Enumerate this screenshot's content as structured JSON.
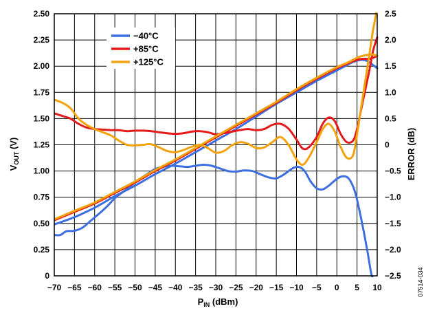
{
  "chart_data": {
    "type": "line",
    "xlabel": {
      "main": "P",
      "sub": "IN",
      "unit": " (dBm)"
    },
    "ylabel": {
      "main": "V",
      "sub": "OUT",
      "unit": " (V)"
    },
    "y2label": "ERROR (dB)",
    "figure_id": "07514-034",
    "xlim": [
      -70,
      10
    ],
    "ylim": [
      0,
      2.5
    ],
    "y2lim": [
      -2.5,
      2.5
    ],
    "grid": true,
    "legend_position": "top-left",
    "x_ticks": [
      "−70",
      "−65",
      "−60",
      "−55",
      "−50",
      "−45",
      "−40",
      "−35",
      "−30",
      "−25",
      "−20",
      "−15",
      "−10",
      "−5",
      "0",
      "5",
      "10"
    ],
    "y_ticks": [
      "0",
      "0.25",
      "0.50",
      "0.75",
      "1.00",
      "1.25",
      "1.50",
      "1.75",
      "2.00",
      "2.25",
      "2.50"
    ],
    "y2_ticks": [
      "−2.5",
      "−2.0",
      "−1.5",
      "−1.0",
      "−0.5",
      "0",
      "0.5",
      "1.0",
      "1.5",
      "2.0",
      "2.5"
    ],
    "series": [
      {
        "name": "−40°C",
        "color": "#3d6fe0",
        "vout": [
          [
            -70,
            0.49
          ],
          [
            -65,
            0.56
          ],
          [
            -60,
            0.65
          ],
          [
            -55,
            0.76
          ],
          [
            -50,
            0.86
          ],
          [
            -45,
            0.97
          ],
          [
            -40,
            1.07
          ],
          [
            -35,
            1.18
          ],
          [
            -30,
            1.29
          ],
          [
            -25,
            1.4
          ],
          [
            -20,
            1.52
          ],
          [
            -15,
            1.64
          ],
          [
            -10,
            1.75
          ],
          [
            -5,
            1.86
          ],
          [
            0,
            1.96
          ],
          [
            2,
            2.0
          ],
          [
            4,
            2.04
          ],
          [
            6,
            2.06
          ],
          [
            7.5,
            2.05
          ],
          [
            9,
            2.01
          ],
          [
            10,
            1.98
          ]
        ],
        "error": [
          [
            -70,
            -1.72
          ],
          [
            -68.5,
            -1.72
          ],
          [
            -67,
            -1.65
          ],
          [
            -65,
            -1.64
          ],
          [
            -63,
            -1.58
          ],
          [
            -61,
            -1.45
          ],
          [
            -59,
            -1.32
          ],
          [
            -57,
            -1.18
          ],
          [
            -55,
            -1.02
          ],
          [
            -53,
            -0.9
          ],
          [
            -51,
            -0.78
          ],
          [
            -49,
            -0.66
          ],
          [
            -47,
            -0.56
          ],
          [
            -45,
            -0.46
          ],
          [
            -43,
            -0.42
          ],
          [
            -41,
            -0.4
          ],
          [
            -39,
            -0.41
          ],
          [
            -37,
            -0.42
          ],
          [
            -35,
            -0.4
          ],
          [
            -33,
            -0.38
          ],
          [
            -31,
            -0.4
          ],
          [
            -29,
            -0.45
          ],
          [
            -27,
            -0.5
          ],
          [
            -25,
            -0.51
          ],
          [
            -23,
            -0.49
          ],
          [
            -21,
            -0.5
          ],
          [
            -19,
            -0.56
          ],
          [
            -17,
            -0.62
          ],
          [
            -15,
            -0.64
          ],
          [
            -13,
            -0.56
          ],
          [
            -11,
            -0.45
          ],
          [
            -9.5,
            -0.42
          ],
          [
            -8,
            -0.5
          ],
          [
            -6.5,
            -0.7
          ],
          [
            -5,
            -0.83
          ],
          [
            -3.5,
            -0.85
          ],
          [
            -2,
            -0.78
          ],
          [
            0,
            -0.65
          ],
          [
            1.5,
            -0.6
          ],
          [
            3,
            -0.65
          ],
          [
            4.5,
            -0.9
          ],
          [
            6,
            -1.4
          ],
          [
            7.5,
            -2.0
          ],
          [
            8.5,
            -2.45
          ],
          [
            9,
            -2.55
          ]
        ]
      },
      {
        "name": "+85°C",
        "color": "#e51a1a",
        "vout": [
          [
            -70,
            0.53
          ],
          [
            -65,
            0.61
          ],
          [
            -60,
            0.69
          ],
          [
            -55,
            0.79
          ],
          [
            -50,
            0.89
          ],
          [
            -45,
            1.0
          ],
          [
            -40,
            1.1
          ],
          [
            -35,
            1.21
          ],
          [
            -30,
            1.32
          ],
          [
            -25,
            1.43
          ],
          [
            -20,
            1.54
          ],
          [
            -15,
            1.65
          ],
          [
            -10,
            1.77
          ],
          [
            -5,
            1.88
          ],
          [
            0,
            1.98
          ],
          [
            3,
            2.03
          ],
          [
            5,
            2.06
          ],
          [
            6.5,
            2.07
          ],
          [
            8,
            2.07
          ],
          [
            9,
            2.08
          ],
          [
            10,
            2.1
          ]
        ],
        "error": [
          [
            -70,
            0.6
          ],
          [
            -68,
            0.55
          ],
          [
            -66,
            0.5
          ],
          [
            -64,
            0.4
          ],
          [
            -62,
            0.33
          ],
          [
            -60,
            0.3
          ],
          [
            -58,
            0.29
          ],
          [
            -56,
            0.28
          ],
          [
            -54,
            0.28
          ],
          [
            -52,
            0.26
          ],
          [
            -50,
            0.27
          ],
          [
            -48,
            0.27
          ],
          [
            -46,
            0.26
          ],
          [
            -44,
            0.24
          ],
          [
            -42,
            0.22
          ],
          [
            -40,
            0.21
          ],
          [
            -38,
            0.22
          ],
          [
            -36,
            0.25
          ],
          [
            -34,
            0.26
          ],
          [
            -32,
            0.24
          ],
          [
            -30,
            0.2
          ],
          [
            -28,
            0.22
          ],
          [
            -26,
            0.25
          ],
          [
            -24,
            0.28
          ],
          [
            -22,
            0.3
          ],
          [
            -20,
            0.28
          ],
          [
            -18,
            0.3
          ],
          [
            -16,
            0.38
          ],
          [
            -14,
            0.4
          ],
          [
            -12,
            0.31
          ],
          [
            -10,
            0.1
          ],
          [
            -8.5,
            -0.07
          ],
          [
            -7,
            -0.05
          ],
          [
            -5,
            0.15
          ],
          [
            -3.5,
            0.4
          ],
          [
            -2,
            0.52
          ],
          [
            -0.5,
            0.45
          ],
          [
            1,
            0.2
          ],
          [
            2.5,
            0.05
          ],
          [
            4,
            0.08
          ],
          [
            5,
            0.3
          ],
          [
            6.5,
            0.85
          ],
          [
            8,
            1.4
          ],
          [
            9,
            1.8
          ],
          [
            10,
            2.05
          ]
        ]
      },
      {
        "name": "+125°C",
        "color": "#f2a20c",
        "vout": [
          [
            -70,
            0.54
          ],
          [
            -65,
            0.62
          ],
          [
            -60,
            0.7
          ],
          [
            -55,
            0.8
          ],
          [
            -50,
            0.9
          ],
          [
            -45,
            1.01
          ],
          [
            -40,
            1.11
          ],
          [
            -35,
            1.22
          ],
          [
            -30,
            1.33
          ],
          [
            -25,
            1.44
          ],
          [
            -20,
            1.55
          ],
          [
            -15,
            1.66
          ],
          [
            -10,
            1.78
          ],
          [
            -5,
            1.89
          ],
          [
            0,
            1.99
          ],
          [
            3,
            2.04
          ],
          [
            5,
            2.08
          ],
          [
            6.5,
            2.1
          ],
          [
            8,
            2.11
          ],
          [
            9,
            2.11
          ],
          [
            10,
            2.1
          ]
        ],
        "error": [
          [
            -70,
            0.86
          ],
          [
            -68,
            0.8
          ],
          [
            -66,
            0.7
          ],
          [
            -64,
            0.5
          ],
          [
            -62,
            0.38
          ],
          [
            -60,
            0.3
          ],
          [
            -58,
            0.24
          ],
          [
            -56,
            0.18
          ],
          [
            -54,
            0.08
          ],
          [
            -52,
            0.0
          ],
          [
            -50,
            -0.01
          ],
          [
            -48,
            0.0
          ],
          [
            -46,
            0.01
          ],
          [
            -44,
            -0.05
          ],
          [
            -42,
            -0.12
          ],
          [
            -40,
            -0.14
          ],
          [
            -38,
            -0.1
          ],
          [
            -36,
            -0.04
          ],
          [
            -34,
            0.0
          ],
          [
            -32,
            -0.06
          ],
          [
            -30,
            -0.15
          ],
          [
            -28,
            -0.12
          ],
          [
            -26,
            -0.01
          ],
          [
            -24,
            0.05
          ],
          [
            -22,
            0.02
          ],
          [
            -20,
            -0.06
          ],
          [
            -18,
            -0.05
          ],
          [
            -16,
            0.05
          ],
          [
            -14,
            0.15
          ],
          [
            -12,
            0.0
          ],
          [
            -10,
            -0.28
          ],
          [
            -8.5,
            -0.38
          ],
          [
            -7,
            -0.25
          ],
          [
            -5,
            0.05
          ],
          [
            -3.5,
            0.3
          ],
          [
            -2,
            0.4
          ],
          [
            -0.5,
            0.25
          ],
          [
            1,
            -0.05
          ],
          [
            2.5,
            -0.25
          ],
          [
            4,
            -0.2
          ],
          [
            5,
            0.2
          ],
          [
            6,
            0.7
          ],
          [
            7,
            1.2
          ],
          [
            8,
            1.7
          ],
          [
            9,
            2.2
          ],
          [
            10,
            2.6
          ]
        ]
      }
    ]
  }
}
